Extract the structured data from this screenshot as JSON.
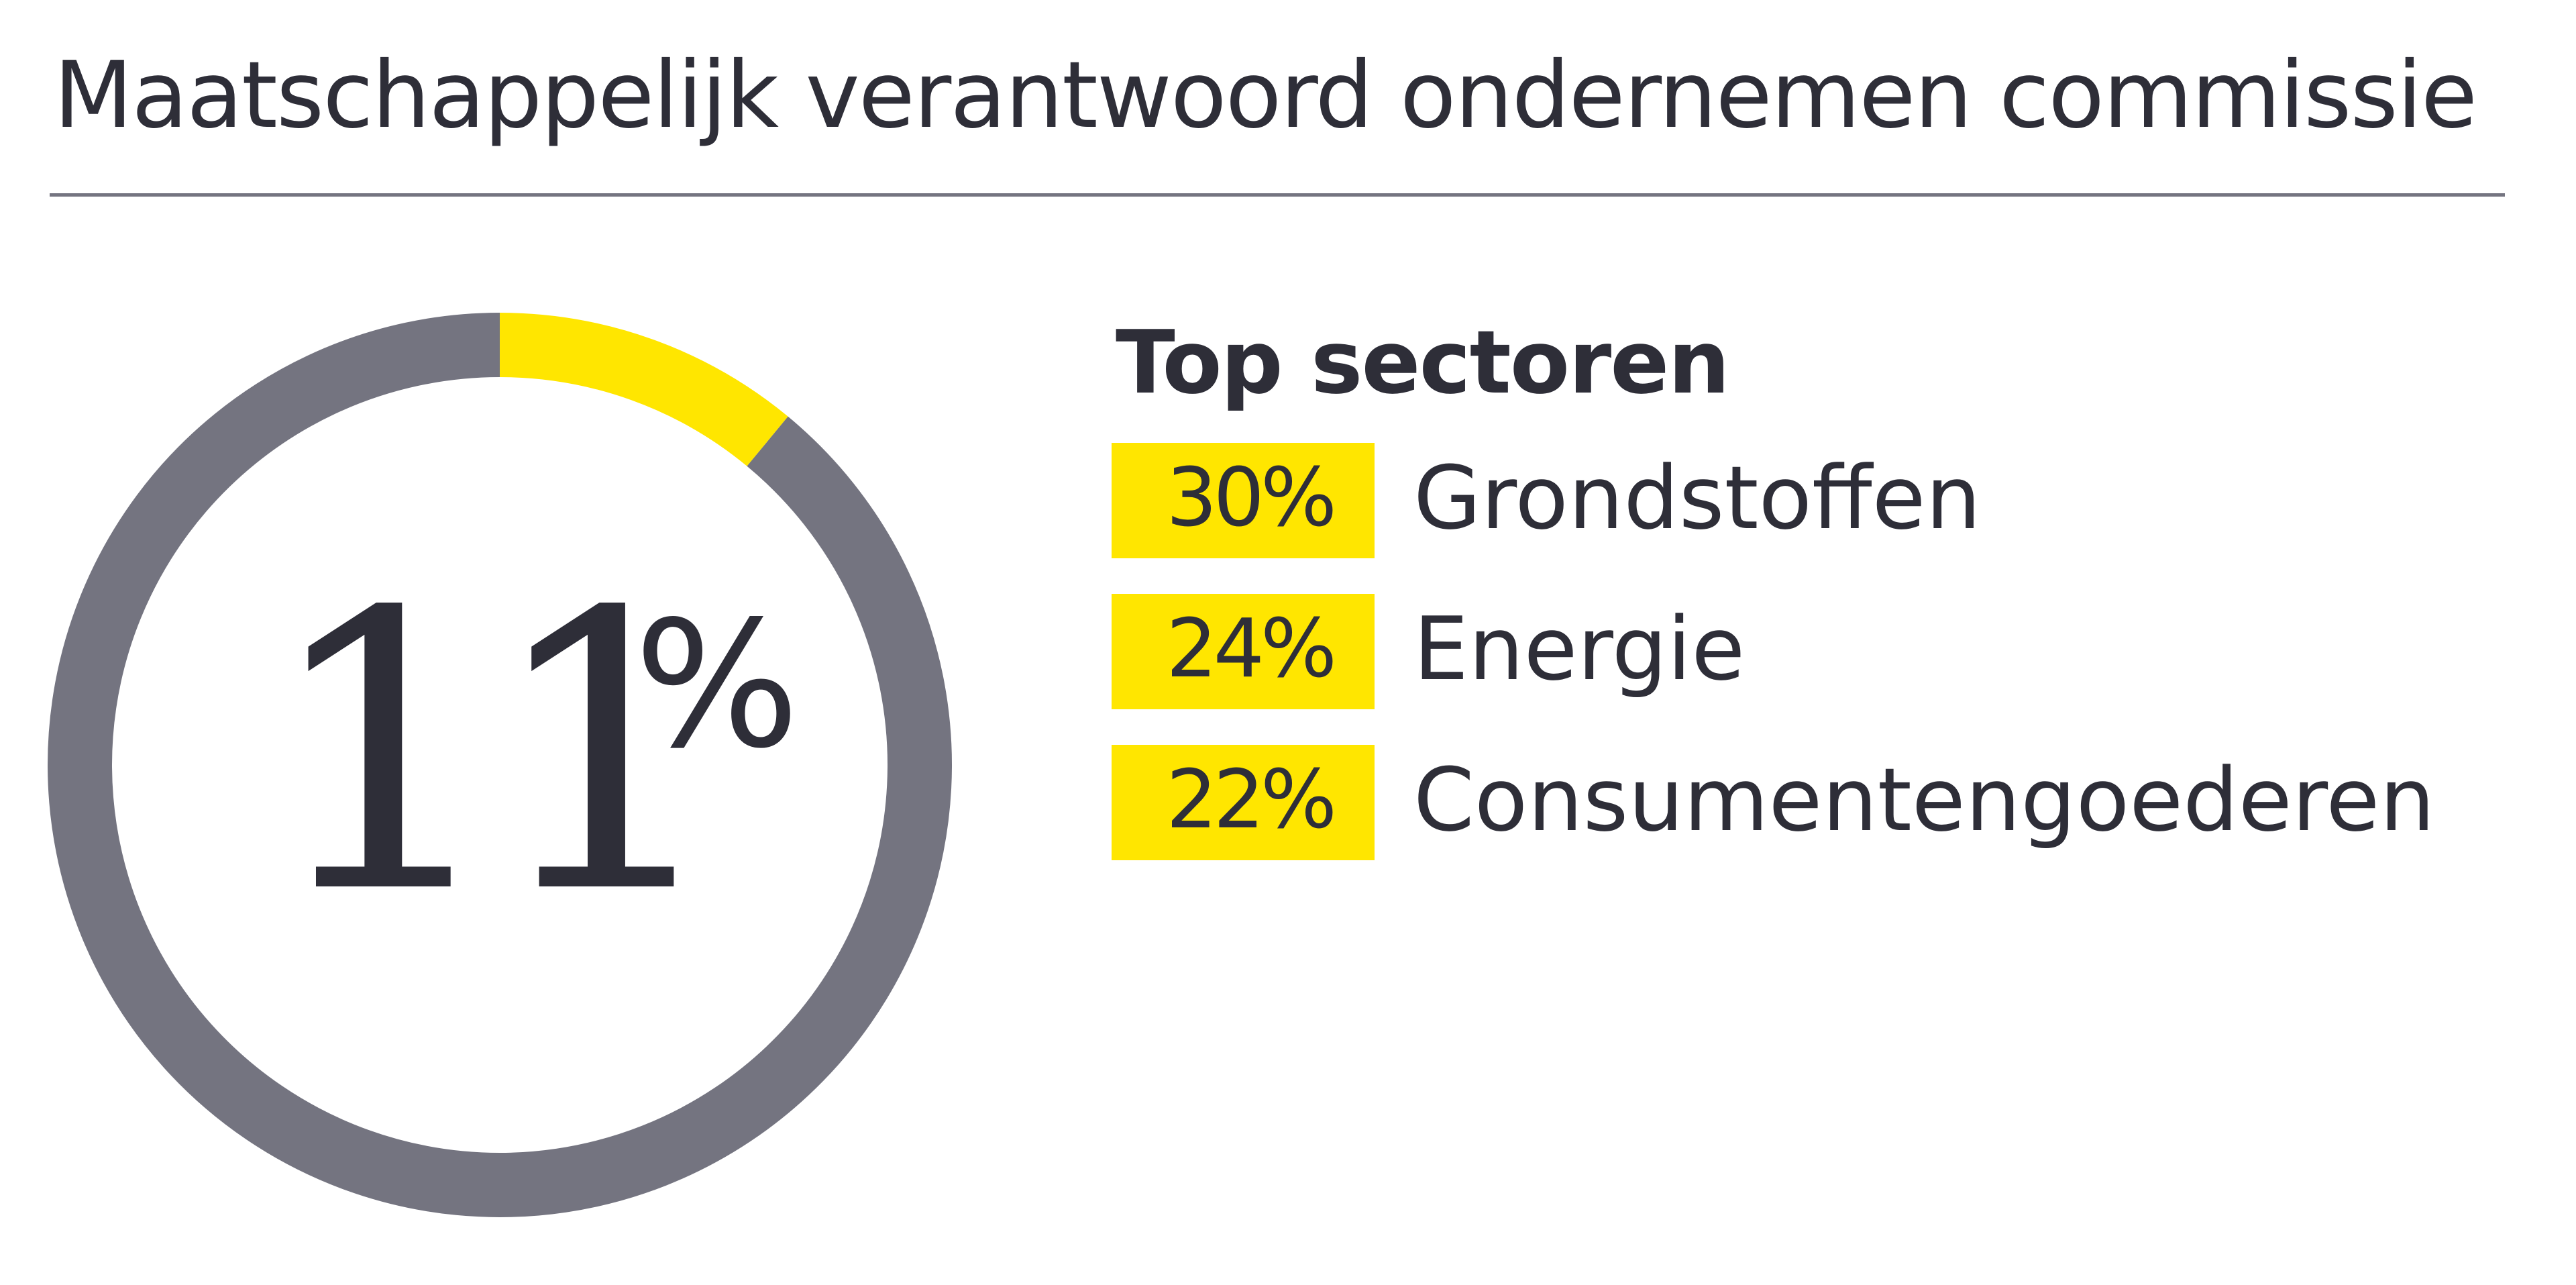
{
  "title": "Maatschappelijk verantwoord ondernemen commissie",
  "colors": {
    "accent": "#ffe600",
    "ring": "#747480",
    "text": "#2e2e38"
  },
  "chart_data": {
    "type": "donut",
    "value": 11,
    "value_label": "11",
    "unit": "%",
    "segments": [
      {
        "value": 11,
        "color": "#ffe600"
      },
      {
        "value": 89,
        "color": "#747480"
      }
    ]
  },
  "top_sectors": {
    "heading": "Top sectoren",
    "items": [
      {
        "value": "30%",
        "name": "Grondstoffen"
      },
      {
        "value": "24%",
        "name": "Energie"
      },
      {
        "value": "22%",
        "name": "Consumentengoederen"
      }
    ]
  }
}
